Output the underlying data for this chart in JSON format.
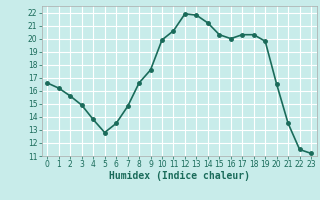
{
  "x": [
    0,
    1,
    2,
    3,
    4,
    5,
    6,
    7,
    8,
    9,
    10,
    11,
    12,
    13,
    14,
    15,
    16,
    17,
    18,
    19,
    20,
    21,
    22,
    23
  ],
  "y": [
    16.6,
    16.2,
    15.6,
    14.9,
    13.8,
    12.8,
    13.5,
    14.8,
    16.6,
    17.6,
    19.9,
    20.6,
    21.9,
    21.8,
    21.2,
    20.3,
    20.0,
    20.3,
    20.3,
    19.8,
    16.5,
    13.5,
    11.5,
    11.2
  ],
  "line_color": "#1a6b5a",
  "marker": "o",
  "markersize": 2.5,
  "linewidth": 1.2,
  "background_color": "#c8ecea",
  "grid_color": "#ffffff",
  "xlabel": "Humidex (Indice chaleur)",
  "ylim": [
    11,
    22.5
  ],
  "xlim": [
    -0.5,
    23.5
  ],
  "yticks": [
    11,
    12,
    13,
    14,
    15,
    16,
    17,
    18,
    19,
    20,
    21,
    22
  ],
  "xticks": [
    0,
    1,
    2,
    3,
    4,
    5,
    6,
    7,
    8,
    9,
    10,
    11,
    12,
    13,
    14,
    15,
    16,
    17,
    18,
    19,
    20,
    21,
    22,
    23
  ],
  "tick_fontsize": 5.5,
  "xlabel_fontsize": 7.0
}
